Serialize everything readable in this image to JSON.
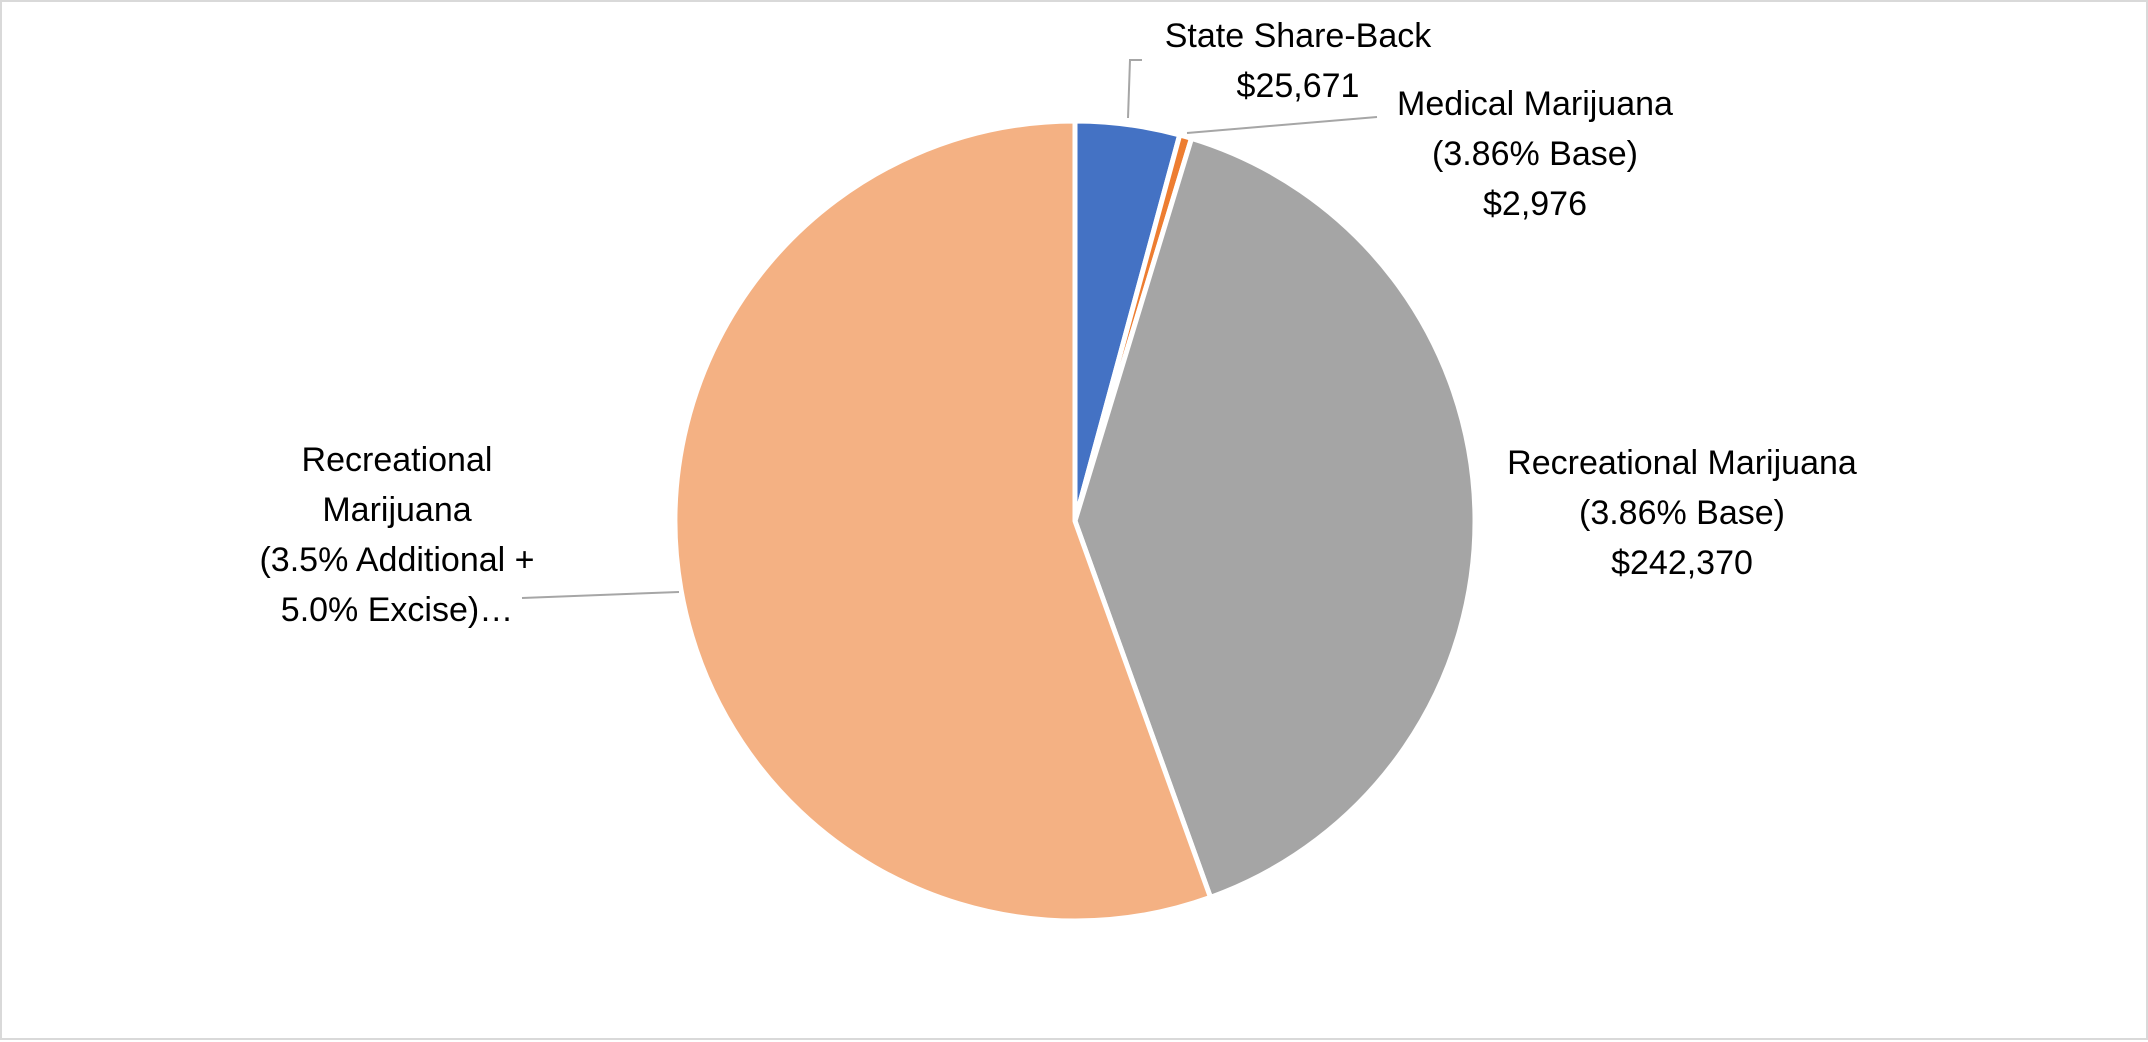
{
  "chart_data": {
    "type": "pie",
    "title": "",
    "start_angle_deg": 0,
    "direction": "clockwise",
    "slices": [
      {
        "label_lines": [
          "State Share-Back",
          "$25,671"
        ],
        "value": 25671,
        "color": "#4472c4"
      },
      {
        "label_lines": [
          "Medical Marijuana",
          "(3.86% Base)",
          "$2,976"
        ],
        "value": 2976,
        "color": "#ed7d31"
      },
      {
        "label_lines": [
          "Recreational Marijuana",
          "(3.86% Base)",
          "$242,370"
        ],
        "value": 242370,
        "color": "#a5a5a5"
      },
      {
        "label_lines": [
          "Recreational",
          "Marijuana",
          "(3.5% Additional +",
          "5.0% Excise)…"
        ],
        "value": 338000,
        "color": "#f4b183"
      }
    ],
    "legend": "none",
    "data_labels": "outside-with-leader-lines"
  }
}
